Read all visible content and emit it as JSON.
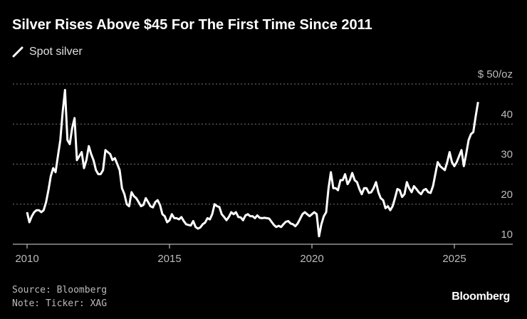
{
  "chart_data": {
    "type": "line",
    "title": "Silver Rises Above $45 For The First Time Since 2011",
    "legend": [
      "Spot silver"
    ],
    "legend_placement": "top-left",
    "ylabel": "$/oz",
    "y_unit_label": "$ 50/oz",
    "ylim": [
      10,
      50
    ],
    "xlim": [
      2009.5,
      2027.05
    ],
    "y_ticks": [
      10,
      20,
      30,
      40,
      50
    ],
    "y_tick_labels": [
      "10",
      "20",
      "30",
      "40",
      "$ 50/oz"
    ],
    "x_ticks": [
      2010,
      2015,
      2020,
      2025
    ],
    "x_tick_labels": [
      "2010",
      "2015",
      "2020",
      "2025"
    ],
    "grid": true,
    "series": [
      {
        "name": "Spot silver",
        "color": "#ffffff",
        "start_year": 2010.0,
        "step_years": 0.08333,
        "values": [
          18,
          15.5,
          17,
          18,
          18.5,
          18.5,
          18,
          18.5,
          20.5,
          23.5,
          27,
          29,
          28,
          32,
          36,
          43,
          48.5,
          36,
          35,
          39,
          41.5,
          31,
          32,
          33,
          29,
          31,
          34.5,
          32.5,
          31,
          28.5,
          27.5,
          27.5,
          28.5,
          33.5,
          33,
          32.5,
          31,
          31.5,
          30,
          28.5,
          24,
          22.5,
          20,
          19.5,
          23,
          22,
          21.5,
          20.5,
          19.5,
          19.8,
          21.5,
          20.5,
          19.5,
          19.2,
          20.5,
          21,
          19.8,
          17.5,
          17,
          15.5,
          16,
          17.5,
          16.5,
          16.5,
          16.2,
          16.8,
          15.8,
          15,
          14.8,
          14.7,
          15.8,
          14.3,
          13.9,
          14.2,
          15,
          15.4,
          16.5,
          16.2,
          17.5,
          20,
          19.5,
          19.3,
          17.5,
          16.8,
          16,
          16.8,
          18,
          17.5,
          18,
          16.8,
          16.7,
          16,
          17.2,
          17.5,
          17,
          17,
          16.5,
          17.2,
          16.6,
          16.5,
          16.6,
          16.5,
          16.4,
          15.6,
          14.8,
          14.3,
          14.6,
          14.3,
          15,
          15.6,
          15.8,
          15.2,
          15,
          14.5,
          15.2,
          16.3,
          17.5,
          18,
          17.5,
          17,
          17.5,
          18,
          17.5,
          12,
          15,
          17,
          18,
          24,
          28,
          24,
          24,
          23.5,
          26,
          26,
          27.5,
          25,
          26,
          27.8,
          26,
          25.5,
          23.8,
          22.5,
          24,
          24,
          22.8,
          23,
          24,
          25.5,
          23,
          21.5,
          21,
          19,
          19.5,
          18.5,
          19.5,
          21.5,
          23.8,
          23.5,
          21.8,
          22.5,
          25.5,
          24,
          23,
          24.5,
          23.8,
          23,
          22.5,
          23.5,
          23.8,
          23,
          22.8,
          24.5,
          27.5,
          30.5,
          29.5,
          29,
          28.5,
          30.5,
          33,
          30.5,
          29.5,
          30.5,
          32,
          33.5,
          29.5,
          32.5,
          36,
          37.5,
          38,
          42,
          45.5
        ]
      }
    ]
  },
  "footer": {
    "source": "Source: Bloomberg",
    "note": "Note: Ticker: XAG"
  },
  "logo": "Bloomberg"
}
